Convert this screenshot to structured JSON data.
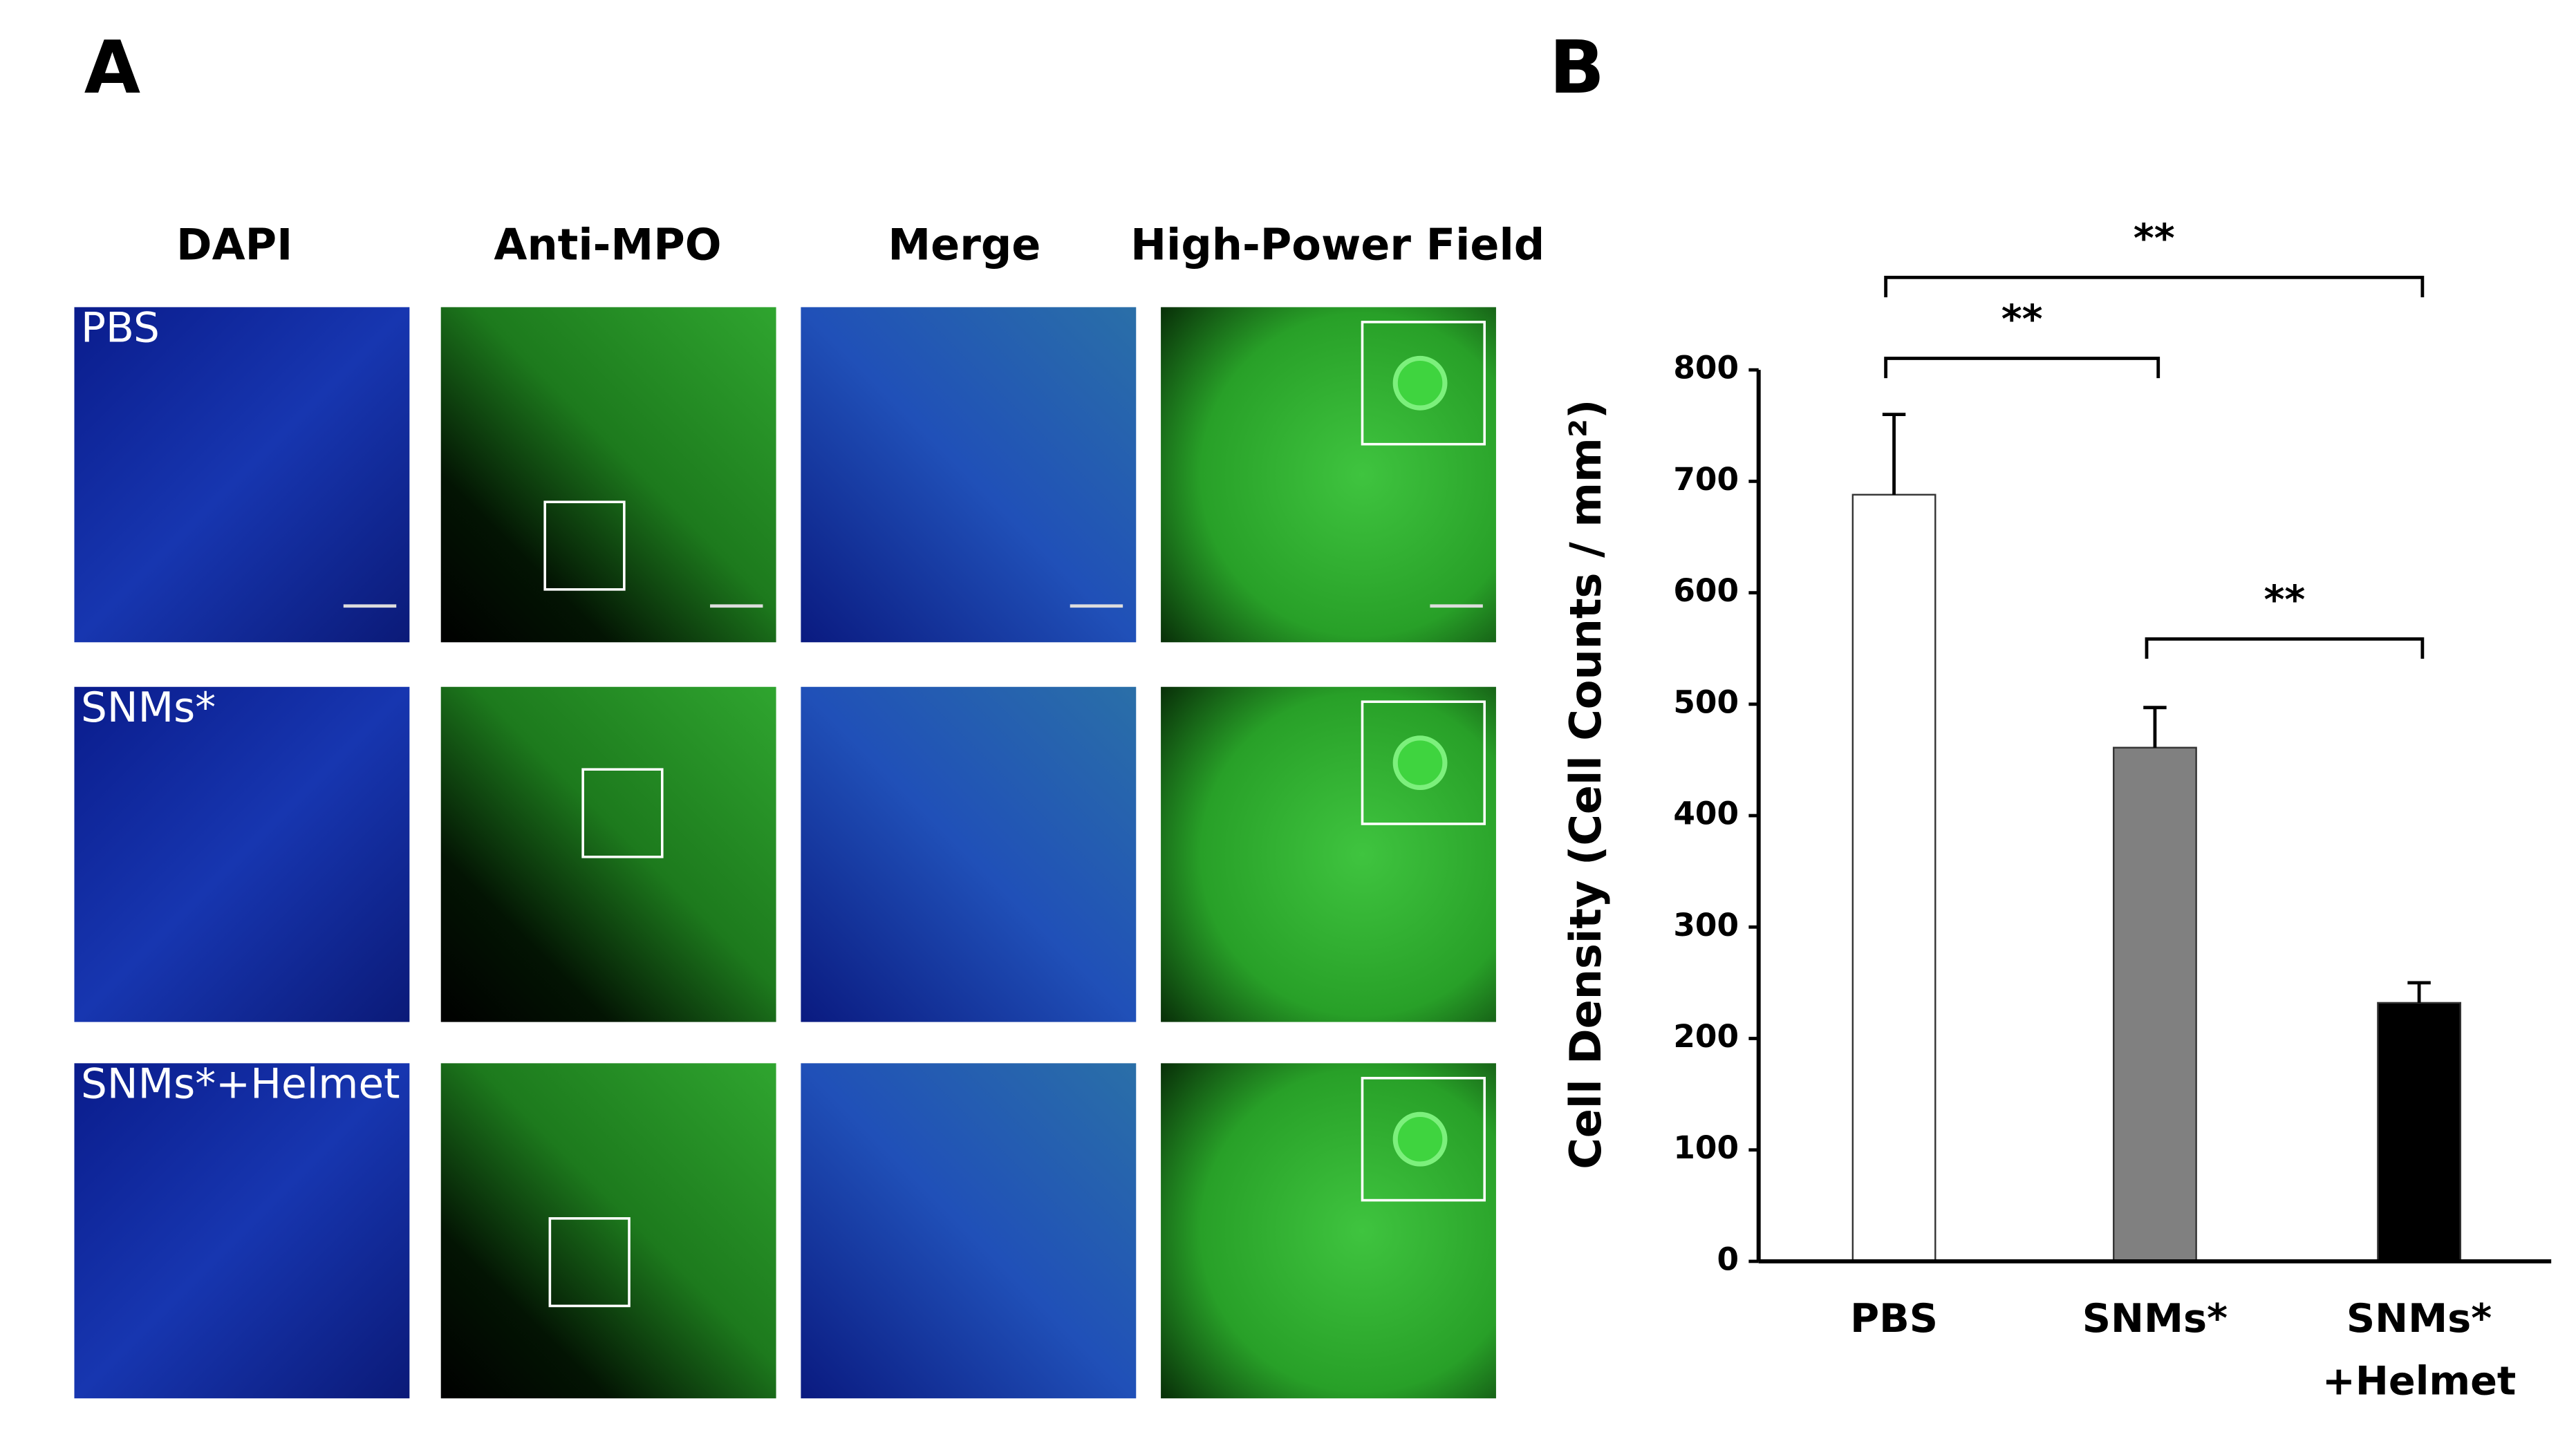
{
  "panel_labels": [
    "A",
    "B"
  ],
  "panel_a": {
    "columns": [
      "DAPI",
      "Anti-MPO",
      "Merge",
      "High-Power Field"
    ],
    "rows": [
      "PBS",
      "SNMs*",
      "SNMs*+Helmet"
    ]
  },
  "chart_data": {
    "type": "bar",
    "categories": [
      "PBS",
      "SNMs*",
      "SNMs*\n+Helmet"
    ],
    "values": [
      688,
      461,
      232
    ],
    "errors": [
      72,
      36,
      18
    ],
    "colors": [
      "#ffffff",
      "#808080",
      "#000000"
    ],
    "y_label": "Cell Density (Cell Counts / mm²)",
    "ylim": [
      0,
      800
    ],
    "yticks": [
      0,
      100,
      200,
      300,
      400,
      500,
      600,
      700,
      800
    ],
    "annotations": [
      {
        "text": "**",
        "between": [
          "PBS",
          "SNMs*+Helmet"
        ]
      },
      {
        "text": "**",
        "between": [
          "PBS",
          "SNMs*"
        ]
      },
      {
        "text": "**",
        "between": [
          "SNMs*",
          "SNMs*+Helmet"
        ]
      }
    ]
  }
}
